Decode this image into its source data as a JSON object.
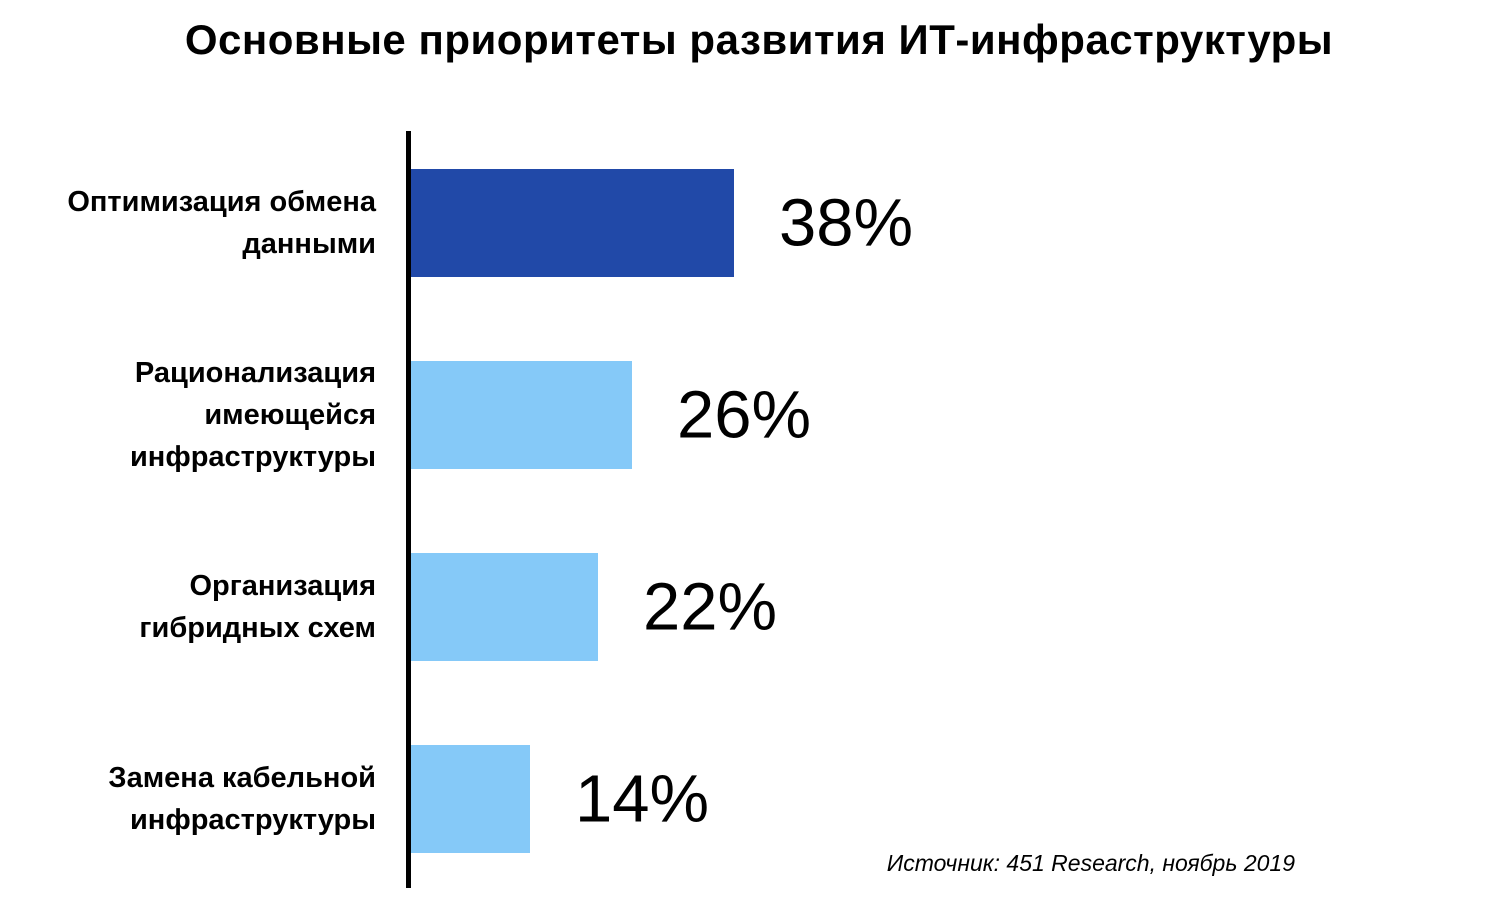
{
  "page": {
    "title": "Основные приоритеты развития ИТ-инфраструктуры",
    "source_note": "Источник: 451 Research, ноябрь 2019"
  },
  "colors": {
    "highlight_bar": "#2149a8",
    "regular_bar": "#85c9f8",
    "axis": "#000000",
    "text": "#000000",
    "background": "#ffffff"
  },
  "chart_data": {
    "type": "bar",
    "orientation": "horizontal",
    "title": "Основные приоритеты развития ИТ-инфраструктуры",
    "categories": [
      "Оптимизация обмена данными",
      "Рационализация имеющейся инфраструктуры",
      "Организация гибридных схем",
      "Замена кабельной инфраструктуры"
    ],
    "values": [
      38,
      26,
      22,
      14
    ],
    "value_labels": [
      "38%",
      "26%",
      "22%",
      "14%"
    ],
    "unit": "%",
    "bar_colors": [
      "#2149a8",
      "#85c9f8",
      "#85c9f8",
      "#85c9f8"
    ],
    "highlight_index": 0,
    "grid": false,
    "legend": false,
    "xlabel": "",
    "ylabel": "",
    "source": "Источник: 451 Research, ноябрь 2019"
  }
}
